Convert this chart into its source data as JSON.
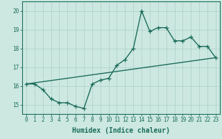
{
  "title": "",
  "xlabel": "Humidex (Indice chaleur)",
  "ylabel": "",
  "xlim": [
    -0.5,
    23.5
  ],
  "ylim": [
    14.5,
    20.5
  ],
  "xtick_labels": [
    "0",
    "1",
    "2",
    "3",
    "4",
    "5",
    "6",
    "7",
    "8",
    "9",
    "10",
    "11",
    "12",
    "13",
    "14",
    "15",
    "16",
    "17",
    "18",
    "19",
    "20",
    "21",
    "22",
    "23"
  ],
  "ytick_values": [
    15,
    16,
    17,
    18,
    19,
    20
  ],
  "bg_color": "#cce8e0",
  "line_color": "#1a6b5a",
  "grid_color": "#aacfc8",
  "data_x": [
    0,
    1,
    2,
    3,
    4,
    5,
    6,
    7,
    8,
    9,
    10,
    11,
    12,
    13,
    14,
    15,
    16,
    17,
    18,
    19,
    20,
    21,
    22,
    23
  ],
  "data_y": [
    16.1,
    16.1,
    15.8,
    15.3,
    15.1,
    15.1,
    14.9,
    14.8,
    16.1,
    16.3,
    16.4,
    17.1,
    17.4,
    18.0,
    20.0,
    18.9,
    19.1,
    19.1,
    18.4,
    18.4,
    18.6,
    18.1,
    18.1,
    17.5
  ],
  "trend_x": [
    0,
    23
  ],
  "trend_y": [
    16.1,
    17.5
  ],
  "marker_size": 4,
  "line_width": 1.0,
  "tick_fontsize": 5.5,
  "xlabel_fontsize": 7
}
